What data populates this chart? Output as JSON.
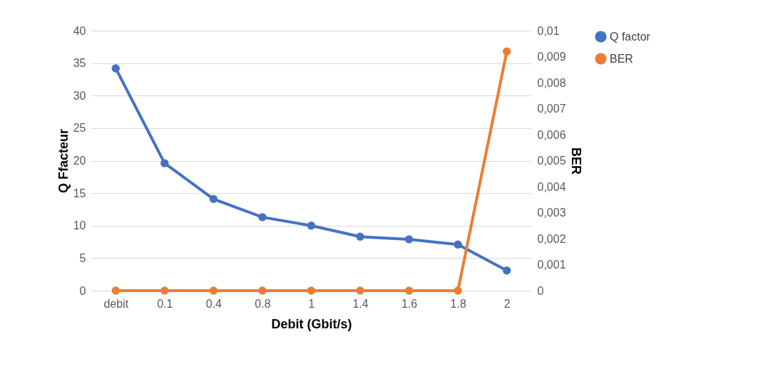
{
  "chart_data": {
    "type": "line",
    "xlabel": "Debit (Gbit/s)",
    "ylabel": "Q Ffacteur",
    "y2label": "BER",
    "categories": [
      "debit",
      "0.1",
      "0.4",
      "0.8",
      "1",
      "1.4",
      "1.6",
      "1.8",
      "2"
    ],
    "series": [
      {
        "name": "Q factor",
        "color": "#4472c4",
        "values": [
          34.2,
          19.6,
          14.1,
          11.3,
          10,
          8.3,
          7.9,
          7.1,
          3.1
        ]
      },
      {
        "name": "BER",
        "color": "#ed7d31",
        "axis": "y2",
        "values": [
          0,
          0,
          0,
          0,
          0,
          0,
          0,
          0,
          0.0092
        ]
      }
    ],
    "ylim": [
      0,
      40
    ],
    "yticks": [
      0,
      5,
      10,
      15,
      20,
      25,
      30,
      35,
      40
    ],
    "y2lim": [
      0,
      0.01
    ],
    "y2ticks": [
      {
        "value": 0,
        "label": "0"
      },
      {
        "value": 0.001,
        "label": "0,001"
      },
      {
        "value": 0.002,
        "label": "0,002"
      },
      {
        "value": 0.003,
        "label": "0,003"
      },
      {
        "value": 0.004,
        "label": "0,004"
      },
      {
        "value": 0.005,
        "label": "0,005"
      },
      {
        "value": 0.006,
        "label": "0,006"
      },
      {
        "value": 0.007,
        "label": "0,007"
      },
      {
        "value": 0.008,
        "label": "0,008"
      },
      {
        "value": 0.009,
        "label": "0,009"
      },
      {
        "value": 0.01,
        "label": "0,01"
      }
    ],
    "grid": "y",
    "legend": "right",
    "marker": "circle",
    "line_style": "solid"
  }
}
